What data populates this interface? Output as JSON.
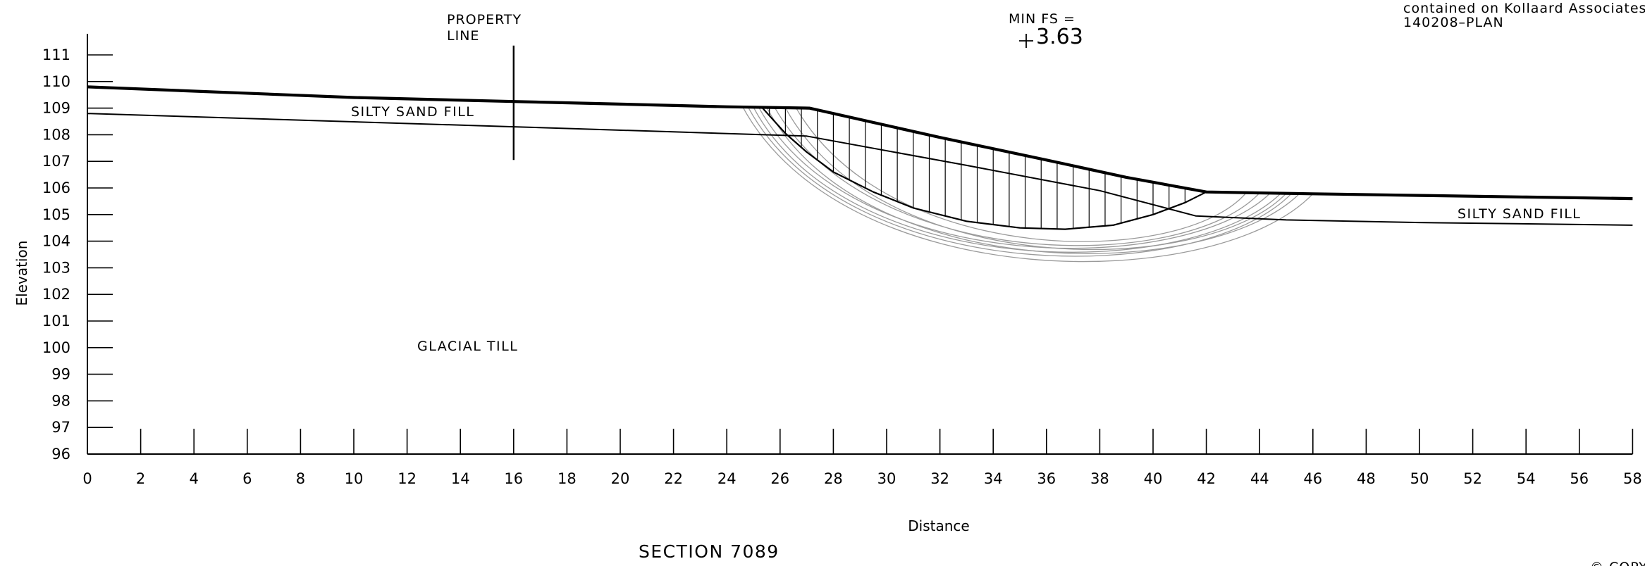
{
  "header": {
    "property_line_label": [
      "PROPERTY",
      "LINE"
    ],
    "min_fs_label": "MIN  FS  =",
    "min_fs_value": "+3.63",
    "reference_note": [
      "contained  on  Kollaard  Associates  Inc",
      "140208–PLAN"
    ]
  },
  "strata": {
    "silty_sand_fill_left": "SILTY  SAND  FILL",
    "silty_sand_fill_right": "SILTY  SAND  FILL",
    "glacial_till": "GLACIAL  TILL"
  },
  "footer": {
    "section_title": "SECTION  7089",
    "corner_fragment": "© COPYRI"
  },
  "chart_data": {
    "type": "line",
    "title": "SECTION  7089",
    "xlabel": "Distance",
    "ylabel": "Elevation",
    "xlim": [
      0,
      58
    ],
    "ylim": [
      96,
      111
    ],
    "x_ticks": [
      0,
      2,
      4,
      6,
      8,
      10,
      12,
      14,
      16,
      18,
      20,
      22,
      24,
      26,
      28,
      30,
      32,
      34,
      36,
      38,
      40,
      42,
      44,
      46,
      48,
      50,
      52,
      54,
      56,
      58
    ],
    "y_ticks": [
      96,
      97,
      98,
      99,
      100,
      101,
      102,
      103,
      104,
      105,
      106,
      107,
      108,
      109,
      110,
      111
    ],
    "grid": false,
    "series": [
      {
        "name": "Ground surface",
        "x": [
          0,
          10,
          16,
          20,
          24,
          27.1,
          32,
          36,
          39,
          42,
          46,
          50,
          54,
          58
        ],
        "y": [
          109.8,
          109.4,
          109.25,
          109.15,
          109.05,
          109,
          107.9,
          107.05,
          106.4,
          105.85,
          105.78,
          105.72,
          105.66,
          105.6
        ]
      },
      {
        "name": "Silty sand fill / glacial till contact",
        "x": [
          0,
          16,
          27,
          33,
          38,
          41.6,
          45,
          50,
          58
        ],
        "y": [
          108.8,
          108.3,
          107.95,
          106.85,
          105.9,
          104.95,
          104.8,
          104.7,
          104.6
        ]
      },
      {
        "name": "Critical slip surface",
        "x": [
          25.3,
          26.2,
          27,
          28,
          29.5,
          31,
          33,
          35,
          36.7,
          38.5,
          40,
          41.2,
          42
        ],
        "y": [
          109.05,
          108.05,
          107.35,
          106.6,
          105.85,
          105.25,
          104.75,
          104.5,
          104.45,
          104.6,
          105,
          105.45,
          105.85
        ]
      }
    ],
    "trial_surfaces": [
      {
        "center_x": 35.6,
        "entry_x": 24.6,
        "exit_x": 46.0,
        "bottom_y": 103.8
      },
      {
        "center_x": 35.3,
        "entry_x": 24.8,
        "exit_x": 45.2,
        "bottom_y": 104.0
      },
      {
        "center_x": 35.0,
        "entry_x": 25.0,
        "exit_x": 44.8,
        "bottom_y": 104.15
      },
      {
        "center_x": 35.2,
        "entry_x": 25.2,
        "exit_x": 44.4,
        "bottom_y": 104.3
      },
      {
        "center_x": 35.6,
        "entry_x": 25.5,
        "exit_x": 45.5,
        "bottom_y": 104.1
      },
      {
        "center_x": 36.0,
        "entry_x": 25.8,
        "exit_x": 44.0,
        "bottom_y": 104.4
      },
      {
        "center_x": 36.2,
        "entry_x": 26.2,
        "exit_x": 45.0,
        "bottom_y": 104.25
      },
      {
        "center_x": 36.6,
        "entry_x": 26.6,
        "exit_x": 43.5,
        "bottom_y": 104.55
      }
    ],
    "property_line": {
      "x": 16,
      "y_top": 111.35,
      "y_bottom": 107.05
    },
    "annotations": [
      "PROPERTY LINE",
      "MIN  FS  =",
      "+3.63",
      "SILTY  SAND  FILL",
      "SILTY  SAND  FILL",
      "GLACIAL  TILL"
    ]
  }
}
